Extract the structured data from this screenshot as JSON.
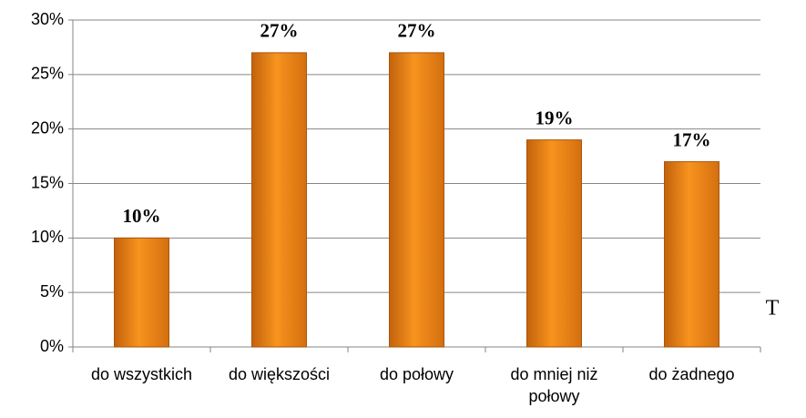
{
  "chart_data": {
    "type": "bar",
    "categories": [
      "do wszystkich",
      "do większości",
      "do połowy",
      "do mniej niż połowy",
      "do żadnego"
    ],
    "values": [
      10,
      27,
      27,
      19,
      17
    ],
    "value_labels": [
      "10%",
      "27%",
      "27%",
      "19%",
      "17%"
    ],
    "color": "#f7931e",
    "ylim": [
      0,
      30
    ],
    "yticks": [
      {
        "value": 0,
        "label": "0%"
      },
      {
        "value": 5,
        "label": "5%"
      },
      {
        "value": 10,
        "label": "10%"
      },
      {
        "value": 15,
        "label": "15%"
      },
      {
        "value": 20,
        "label": "20%"
      },
      {
        "value": 25,
        "label": "25%"
      },
      {
        "value": 30,
        "label": "30%"
      }
    ],
    "grid": true,
    "annotations": [
      "T"
    ]
  }
}
